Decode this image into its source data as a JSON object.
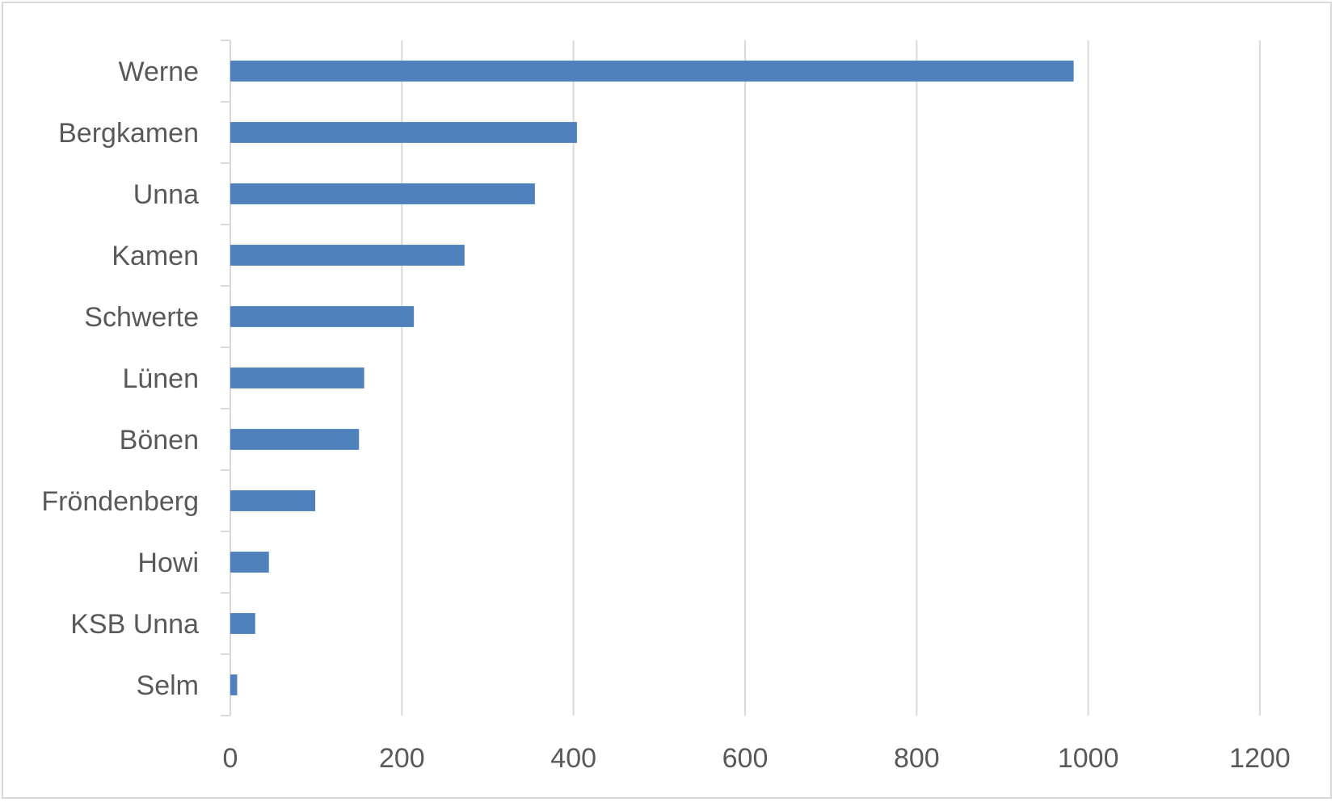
{
  "chart_data": {
    "type": "bar",
    "orientation": "horizontal",
    "categories": [
      "Werne",
      "Bergkamen",
      "Unna",
      "Kamen",
      "Schwerte",
      "Lünen",
      "Bönen",
      "Fröndenberg",
      "Howi",
      "KSB Unna",
      "Selm"
    ],
    "values": [
      983,
      404,
      355,
      273,
      214,
      156,
      150,
      99,
      45,
      29,
      8
    ],
    "title": "",
    "xlabel": "",
    "ylabel": "",
    "xlim": [
      0,
      1200
    ],
    "x_ticks": [
      "0",
      "200",
      "400",
      "600",
      "800",
      "1000",
      "1200"
    ],
    "grid": "vertical",
    "legend": "none",
    "colors": {
      "bar": "#4f81bd",
      "grid": "#d9d9d9",
      "axis": "#d9d9d9",
      "text": "#595959",
      "border": "#d9d9d9"
    }
  }
}
